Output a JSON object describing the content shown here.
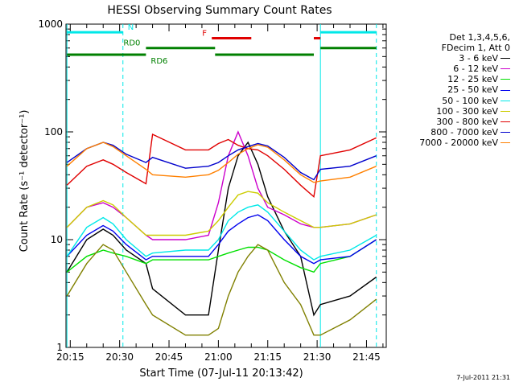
{
  "chart_data": {
    "type": "line",
    "title": "HESSI Observing Summary Count Rates",
    "xlabel": "Start Time (07-Jul-11 20:13:42)",
    "ylabel": "Count Rate (s⁻¹ detector⁻¹)",
    "yscale": "log",
    "ylim": [
      1,
      1000
    ],
    "xlim": [
      "20:13:42",
      "21:51:00"
    ],
    "x_ticks": [
      "20:15",
      "20:30",
      "20:45",
      "21:00",
      "21:15",
      "21:30",
      "21:45"
    ],
    "y_ticks": [
      "1",
      "10",
      "100",
      "1000"
    ],
    "legend_header": [
      "Det 1,3,4,5,6,",
      "FDecim 1, Att 0"
    ],
    "x": [
      "20:14",
      "20:20",
      "20:25",
      "20:28",
      "20:32",
      "20:38",
      "20:40",
      "20:50",
      "20:57",
      "21:00",
      "21:03",
      "21:06",
      "21:09",
      "21:12",
      "21:15",
      "21:20",
      "21:25",
      "21:29",
      "21:31",
      "21:40",
      "21:48"
    ],
    "series": [
      {
        "name": "3 - 6 keV",
        "color": "#000000",
        "values": [
          5,
          10,
          12.5,
          11,
          8,
          6,
          3.5,
          2,
          2,
          8,
          30,
          60,
          80,
          50,
          25,
          12,
          7,
          2,
          2.5,
          3,
          4.5
        ]
      },
      {
        "name": "6 - 12 keV",
        "color": "#cc00cc",
        "values": [
          13,
          20,
          22,
          20,
          16,
          11,
          10,
          10,
          11,
          22,
          60,
          100,
          60,
          30,
          20,
          17,
          14,
          13,
          13,
          14,
          17
        ]
      },
      {
        "name": "12 - 25 keV",
        "color": "#00e000",
        "values": [
          5,
          7,
          8,
          7.5,
          7,
          6,
          6.5,
          6.5,
          6.5,
          7,
          7.5,
          8,
          8.5,
          8.5,
          8,
          6.5,
          5.5,
          5,
          6,
          7,
          10
        ]
      },
      {
        "name": "25 - 50 keV",
        "color": "#0000ee",
        "values": [
          7,
          11,
          13.5,
          12,
          9,
          6.5,
          7,
          7,
          7,
          9,
          12,
          14,
          16,
          17,
          15,
          10,
          7,
          6,
          6.5,
          7,
          10
        ]
      },
      {
        "name": "50 - 100 keV",
        "color": "#00e8e8",
        "values": [
          7,
          13,
          16,
          14,
          10,
          7,
          7.5,
          8,
          8,
          10,
          15,
          18,
          20,
          21,
          18,
          12,
          8,
          6.5,
          7,
          8,
          11
        ]
      },
      {
        "name": "100 - 300 keV",
        "color": "#cccc00",
        "values": [
          13,
          20,
          23,
          21,
          16,
          11,
          11,
          11,
          12,
          15,
          20,
          26,
          28,
          27,
          22,
          18,
          15,
          13,
          13,
          14,
          17
        ]
      },
      {
        "name": "300 - 800 keV",
        "color": "#e00000",
        "values": [
          32,
          48,
          55,
          50,
          42,
          33,
          95,
          68,
          68,
          78,
          85,
          75,
          70,
          68,
          60,
          45,
          32,
          25,
          60,
          68,
          88
        ]
      },
      {
        "name": "800 - 7000 keV",
        "color": "#0000cc",
        "values": [
          52,
          70,
          80,
          75,
          62,
          52,
          58,
          46,
          48,
          52,
          60,
          68,
          73,
          78,
          74,
          58,
          42,
          36,
          45,
          48,
          60
        ]
      },
      {
        "name": "7000 - 20000 keV",
        "color": "#ff8000",
        "values": [
          48,
          70,
          80,
          73,
          60,
          45,
          40,
          38,
          40,
          44,
          52,
          62,
          70,
          76,
          72,
          55,
          40,
          34,
          35,
          38,
          48
        ]
      },
      {
        "name": "",
        "color": "#808000",
        "values": [
          3,
          6,
          9,
          8,
          5,
          2.5,
          2,
          1.3,
          1.3,
          1.5,
          3,
          5,
          7,
          9,
          8,
          4,
          2.5,
          1.3,
          1.3,
          1.8,
          2.8
        ]
      }
    ],
    "flag_bars": [
      {
        "label": "N",
        "color": "#00e8e8",
        "ranges": [
          [
            "20:14",
            "20:31"
          ],
          [
            "21:31",
            "21:48"
          ]
        ],
        "y": 840
      },
      {
        "label": "F",
        "color": "#e00000",
        "ranges": [
          [
            "20:58",
            "21:10"
          ],
          [
            "21:29",
            "21:31"
          ]
        ],
        "y": 740
      },
      {
        "label": "RD0",
        "color": "#008000",
        "ranges": [
          [
            "20:38",
            "20:59"
          ],
          [
            "21:31",
            "21:48"
          ]
        ],
        "y": 600
      },
      {
        "label": "RD6",
        "color": "#008000",
        "ranges": [
          [
            "20:14",
            "20:38"
          ],
          [
            "20:59",
            "21:29"
          ]
        ],
        "y": 520
      }
    ],
    "vlines_solid": [
      "20:14",
      "21:31"
    ],
    "vlines_dashed": [
      "20:31",
      "21:48"
    ],
    "vline_color": "#00e8e8"
  },
  "stamp": "7-Jul-2011 21:31"
}
